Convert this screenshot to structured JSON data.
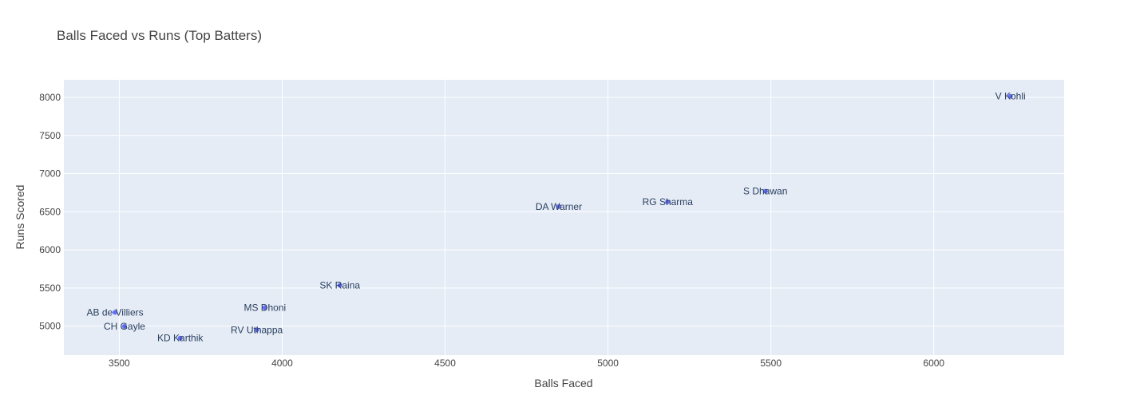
{
  "chart_data": {
    "type": "scatter",
    "title": "Balls Faced vs Runs (Top Batters)",
    "xlabel": "Balls Faced",
    "ylabel": "Runs Scored",
    "xlim": [
      3330,
      6400
    ],
    "ylim": [
      4620,
      8230
    ],
    "x_ticks": [
      3500,
      4000,
      4500,
      5000,
      5500,
      6000
    ],
    "y_ticks": [
      5000,
      5500,
      6000,
      6500,
      7000,
      7500,
      8000
    ],
    "grid": true,
    "legend": "none",
    "marker_color": "#636efa",
    "plot_bg": "#e5ecf6",
    "grid_color": "#ffffff",
    "points": [
      {
        "label": "V Kohli",
        "x": 6235,
        "y": 8014
      },
      {
        "label": "S Dhawan",
        "x": 5483,
        "y": 6769
      },
      {
        "label": "RG Sharma",
        "x": 5183,
        "y": 6630
      },
      {
        "label": "DA Warner",
        "x": 4849,
        "y": 6567
      },
      {
        "label": "SK Raina",
        "x": 4177,
        "y": 5536
      },
      {
        "label": "MS Dhoni",
        "x": 3947,
        "y": 5243
      },
      {
        "label": "AB de Villiers",
        "x": 3487,
        "y": 5181
      },
      {
        "label": "CH Gayle",
        "x": 3516,
        "y": 4997
      },
      {
        "label": "RV Uthappa",
        "x": 3922,
        "y": 4952
      },
      {
        "label": "KD Karthik",
        "x": 3687,
        "y": 4843
      }
    ]
  }
}
